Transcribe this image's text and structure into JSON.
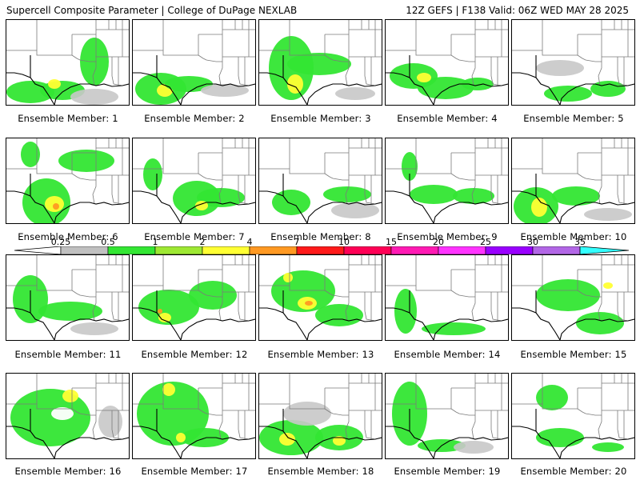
{
  "header": {
    "left": "Supercell Composite Parameter | College of DuPage NEXLAB",
    "right": "12Z GEFS | F138 Valid: 06Z WED MAY 28 2025"
  },
  "panel_label_prefix": "Ensemble Member: ",
  "members": [
    "1",
    "2",
    "3",
    "4",
    "5",
    "6",
    "7",
    "8",
    "9",
    "10",
    "11",
    "12",
    "13",
    "14",
    "15",
    "16",
    "17",
    "18",
    "19",
    "20"
  ],
  "colorbar": {
    "ticks": [
      "0.25",
      "0.5",
      "1",
      "2",
      "4",
      "7",
      "10",
      "15",
      "20",
      "25",
      "30",
      "35"
    ],
    "colors": [
      "#c0c0c0",
      "#33e633",
      "#9ee833",
      "#ffff33",
      "#ff9922",
      "#ff1a1a",
      "#ff0055",
      "#ff1ab3",
      "#ff33ff",
      "#9900ff",
      "#b266e6",
      "#33ffff"
    ]
  },
  "chart_data": {
    "type": "heatmap",
    "title": "Supercell Composite Parameter",
    "region": "South-Central United States",
    "members": 20,
    "colorbar_thresholds": [
      0.25,
      0.5,
      1,
      2,
      4,
      7,
      10,
      15,
      20,
      25,
      30,
      35
    ],
    "max_category_per_member": {
      "1": "2-4",
      "2": "2-4",
      "3": "2-4",
      "4": "2-4",
      "5": "1-2",
      "6": "4-7",
      "7": "2-4",
      "8": "2-4",
      "9": "1-2",
      "10": "2-4",
      "11": "1-2",
      "12": "4-7",
      "13": "7-10",
      "14": "1-2",
      "15": "2-4",
      "16": "2-4",
      "17": "2-4",
      "18": "4-7",
      "19": "1-2",
      "20": "1-2"
    }
  }
}
